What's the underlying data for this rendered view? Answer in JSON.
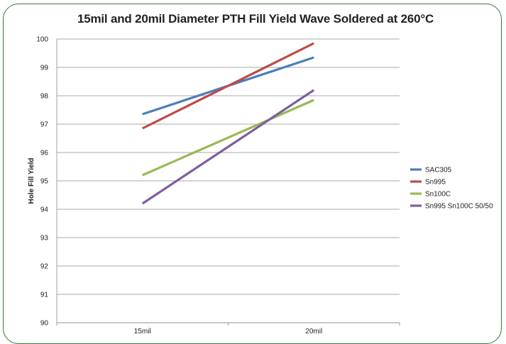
{
  "chart_data": {
    "type": "line",
    "title": "15mil and 20mil Diameter PTH Fill Yield Wave Soldered at 260°C",
    "xlabel": "",
    "ylabel": "Hole Fill Yield",
    "categories": [
      "15mil",
      "20mil"
    ],
    "ylim": [
      90,
      100
    ],
    "yticks": [
      90,
      91,
      92,
      93,
      94,
      95,
      96,
      97,
      98,
      99,
      100
    ],
    "grid": true,
    "legend_position": "right",
    "series": [
      {
        "name": "SAC305",
        "values": [
          97.35,
          99.35
        ],
        "color": "#4a7ebb"
      },
      {
        "name": "Sn995",
        "values": [
          96.85,
          99.85
        ],
        "color": "#be4b48"
      },
      {
        "name": "Sn100C",
        "values": [
          95.2,
          97.85
        ],
        "color": "#98b954"
      },
      {
        "name": "Sn995 Sn100C 50/50",
        "values": [
          94.2,
          98.2
        ],
        "color": "#7d5fa0"
      }
    ]
  }
}
